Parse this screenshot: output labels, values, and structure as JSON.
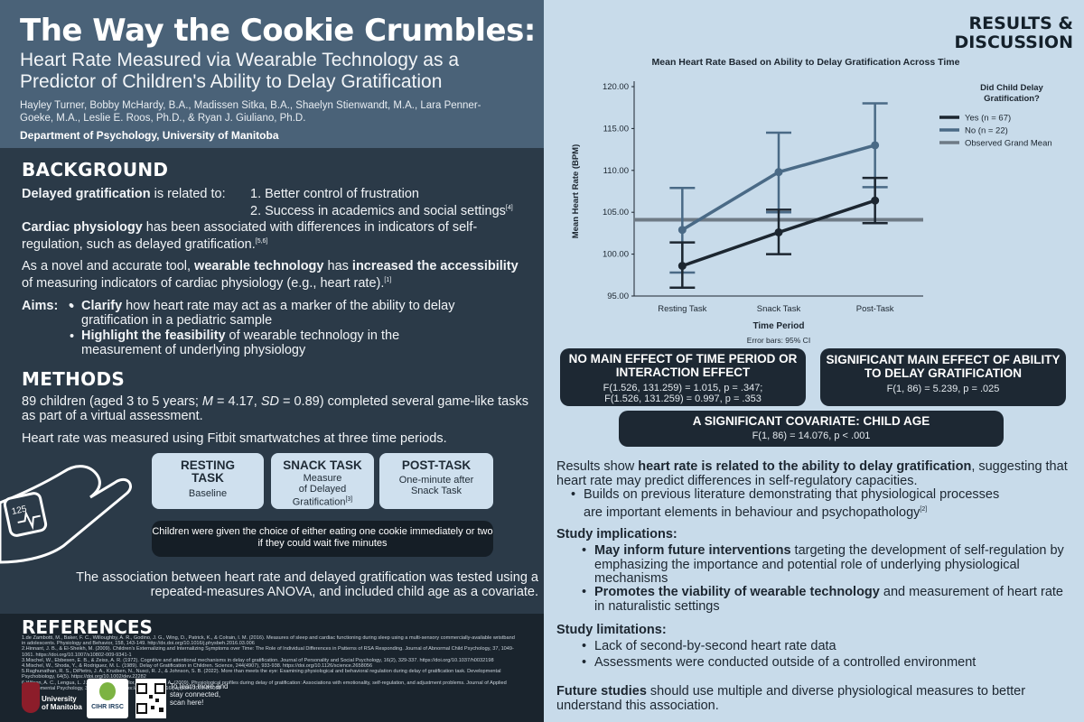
{
  "header": {
    "title": "The Way the Cookie Crumbles:",
    "subtitle_1": "Heart Rate Measured via Wearable Technology as a",
    "subtitle_2": "Predictor of Children's Ability to Delay Gratification",
    "authors": "Hayley Turner, Bobby McHardy, B.A., Madissen Sitka, B.A., Shaelyn Stienwandt, M.A., Lara Penner-Goeke, M.A., Leslie E. Roos, Ph.D., & Ryan J. Giuliano, Ph.D.",
    "department": "Department of Psychology, University of Manitoba"
  },
  "background": {
    "heading": "BACKGROUND",
    "dg_bold": "Delayed gratification",
    "dg_text": " is related to:",
    "dg_item1": "1.  Better control of frustration",
    "dg_item2": "2.  Success in academics and social settings",
    "dg_item2_ref": "[4]",
    "cardiac_bold": "Cardiac physiology",
    "cardiac_text": " has been associated with differences in indicators of self-regulation, such as delayed gratification.",
    "cardiac_ref": "[5,6]",
    "wear_pre": "As a novel and accurate tool, ",
    "wear_bold1": "wearable technology",
    "wear_mid": " has ",
    "wear_bold2": "increased the accessibility",
    "wear_post": " of measuring indicators of cardiac physiology (e.g., heart rate).",
    "wear_ref": "[1]",
    "aims_label": "Aims:",
    "aim1_bold": "Clarify",
    "aim1_text": " how heart rate may act as a marker of the ability to delay gratification in a pediatric sample",
    "aim2_bold": "Highlight the feasibility",
    "aim2_text": " of wearable technology in the measurement of underlying physiology"
  },
  "methods": {
    "heading": "METHODS",
    "p1_a": "89 children (aged 3 to 5 years; ",
    "p1_m": "M",
    "p1_b": " = 4.17, ",
    "p1_sd": "SD",
    "p1_c": " = 0.89) completed several game-like tasks as part of a virtual assessment.",
    "p2": "Heart rate was measured using Fitbit smartwatches at three time periods.",
    "watch_value": "125",
    "stages": [
      {
        "title": "RESTING\nTASK",
        "desc": "Baseline"
      },
      {
        "title": "SNACK TASK",
        "desc": "Measure\nof Delayed\nGratification",
        "ref": "[3]"
      },
      {
        "title": "POST-TASK",
        "desc": "One-minute after\nSnack Task"
      }
    ],
    "choice": "Children were given the choice of either eating one cookie immediately or two if they could wait five minutes",
    "analysis": "The association between heart rate and delayed gratification was tested using a repeated-measures ANOVA, and included child age as a covariate."
  },
  "references": {
    "heading": "REFERENCES",
    "items": [
      "1.de Zambotti, M., Baker, F. C., Willoughby, A. R., Godino, J. G., Wing, D., Patrick, K., & Colrain, I. M. (2016). Measures of sleep and cardiac functioning during sleep using a multi-sensory commercially-available wristband in adolescents. Physiology and Behavior, 158, 143-149. http://dx.doi.org/10.1016/j.physbeh.2016.03.006",
      "2.Hinnant, J. B., & El-Sheikh, M. (2009). Children's Externalizing and Internalizing Symptoms over Time: The Role of Individual Differences in Patterns of RSA Responding. Journal of Abnormal Child Psychology, 37, 1049-1061. https://doi.org/10.1007/s10802-009-9341-1",
      "3.Mischel, W., Ebbesen, E. B., & Zeiss, A. R. (1972). Cognitive and attentional mechanisms in delay of gratification. Journal of Personality and Social Psychology, 16(2), 329-337. https://doi.org/10.1037/h0032198",
      "4.Mischel, W., Shoda, Y., & Rodriguez, M. L. (1989). Delay of Gratification in Children. Science, 244(4907), 933-938. https://doi.org/10.1126/science.2658056",
      "5.Raghunathan, R. S., DiPietro, J. A., Krudsen, N., Nusci, R. J., & Johnson, S. B. (2022). More than meets the eye: Examining physiological and behavioral regulation during delay of gratification task. Developmental Psychobiology, 64(5). https://doi.org/10.1002/dev.22282",
      "6.Wilson, A. C., Lengua, L. J., Tininenko, J., Taylor, A., & Trancik, A. (2009). Physiological profiles during delay of gratification: Associations with emotionality, self-regulation, and adjustment problems. Journal of Applied Developmental Psychology, 30(6), 780-790. https://doi.org/10.1016/j.appdev.2009.05.002"
    ],
    "qr_text": "To learn more and stay connected, scan here!",
    "logo_um": "University of Manitoba",
    "logo_cihr": "CIHR IRSC"
  },
  "results": {
    "heading_1": "RESULTS &",
    "heading_2": "DISCUSSION",
    "box1_title": "NO MAIN EFFECT OF TIME PERIOD OR INTERACTION EFFECT",
    "box1_line1": "F(1.526, 131.259) = 1.015, p = .347;",
    "box1_line2": "F(1.526, 131.259) = 0.997, p = .353",
    "box2_title": "SIGNIFICANT MAIN EFFECT OF ABILITY TO DELAY GRATIFICATION",
    "box2_line1": "F(1, 86) = 5.239, p = .025",
    "box3_title": "A SIGNIFICANT COVARIATE: CHILD AGE",
    "box3_line1": "F(1, 86) = 14.076, p < .001",
    "p1_pre": "Results show ",
    "p1_bold": "heart rate is related to the ability to delay gratification",
    "p1_post": ", suggesting that heart rate may predict differences in self-regulatory capacities.",
    "p1_bullet": "Builds on previous literature demonstrating that physiological processes are important elements in behaviour and psychopathology",
    "p1_bullet_ref": "[2]",
    "impl_heading": "Study implications:",
    "impl1_bold": "May inform future interventions",
    "impl1_text": " targeting the development of self-regulation by emphasizing the importance and potential role of underlying physiological mechanisms",
    "impl2_bold": "Promotes the viability of wearable technology",
    "impl2_text": " and measurement of heart rate in naturalistic settings",
    "lim_heading": "Study limitations:",
    "lim1": "Lack of second-by-second heart rate data",
    "lim2": "Assessments were conducted outside of a controlled environment",
    "future_bold": "Future studies",
    "future_text": " should use multiple and diverse physiological measures to better understand this association."
  },
  "chart_data": {
    "type": "line",
    "title": "Mean Heart Rate Based on Ability to Delay Gratification Across Time",
    "xlabel": "Time Period",
    "ylabel": "Mean Heart Rate (BPM)",
    "note": "Error bars: 95% CI",
    "categories": [
      "Resting Task",
      "Snack Task",
      "Post-Task"
    ],
    "ylim": [
      95,
      120
    ],
    "yticks": [
      "95.00",
      "100.00",
      "105.00",
      "110.00",
      "115.00",
      "120.00"
    ],
    "legend_title": "Did Child Delay Gratification?",
    "legend_placement": "right",
    "grand_mean": 104.1,
    "series": [
      {
        "name": "Yes (n = 67)",
        "color": "#1c2630",
        "values": [
          98.6,
          102.6,
          106.4
        ],
        "ci_low": [
          96.0,
          100.0,
          103.7
        ],
        "ci_high": [
          101.4,
          105.3,
          109.1
        ]
      },
      {
        "name": "No (n = 22)",
        "color": "#4a6a86",
        "values": [
          102.9,
          109.8,
          113.0
        ],
        "ci_low": [
          97.8,
          105.0,
          108.0
        ],
        "ci_high": [
          107.9,
          114.5,
          118.0
        ]
      }
    ],
    "grand_mean_label": "Observed Grand Mean",
    "grand_mean_color": "#6e7a85"
  },
  "colors": {
    "header_bg": "#4a6278",
    "left_bg": "#2b3a48",
    "right_bg": "#c8dbea",
    "box_dark": "#1d2833"
  }
}
